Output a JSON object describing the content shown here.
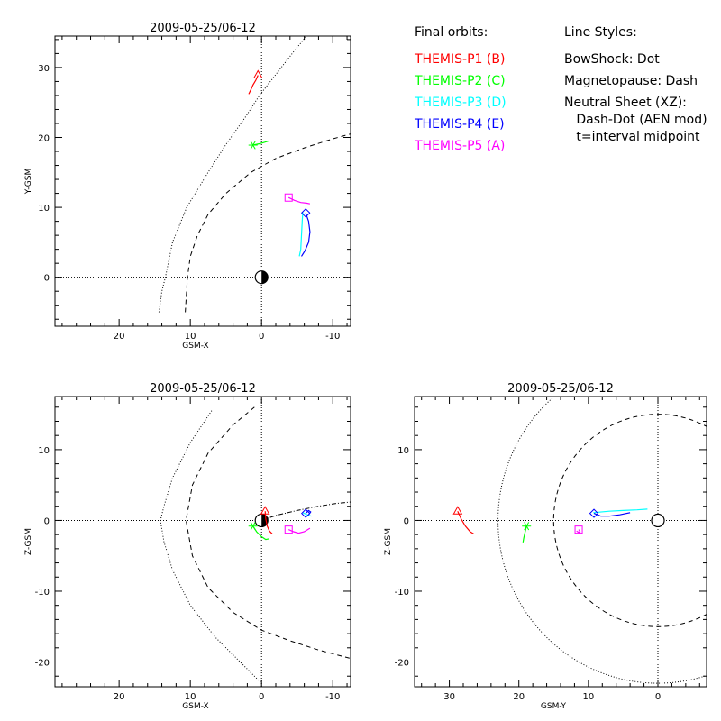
{
  "legend": {
    "orbits_heading": "Final orbits:",
    "orbits": [
      {
        "label": "THEMIS-P1 (B)",
        "color": "#ff0000"
      },
      {
        "label": "THEMIS-P2 (C)",
        "color": "#00ff00"
      },
      {
        "label": "THEMIS-P3 (D)",
        "color": "#00ffff"
      },
      {
        "label": "THEMIS-P4 (E)",
        "color": "#0000ff"
      },
      {
        "label": "THEMIS-P5 (A)",
        "color": "#ff00ff"
      }
    ],
    "styles_heading": "Line Styles:",
    "styles": [
      "BowShock: Dot",
      "Magnetopause: Dash",
      "Neutral Sheet (XZ):",
      "  Dash-Dot (AEN mod)",
      "  t=interval midpoint"
    ]
  },
  "chart_data": [
    {
      "type": "line",
      "title": "2009-05-25/06-12",
      "xlabel": "GSM-X",
      "ylabel": "Y-GSM",
      "xlim": [
        29,
        -12.5
      ],
      "ylim": [
        34.5,
        -7
      ],
      "xticks": [
        20,
        10,
        0,
        -10
      ],
      "yticks": [
        0,
        10,
        20,
        30
      ],
      "bowshock": [
        [
          14.4,
          -5
        ],
        [
          14,
          -2
        ],
        [
          13.5,
          0
        ],
        [
          12.5,
          5
        ],
        [
          10.5,
          10
        ],
        [
          7.5,
          15
        ],
        [
          5,
          19
        ],
        [
          2.2,
          23
        ],
        [
          0.3,
          26
        ],
        [
          -2,
          29
        ],
        [
          -4.3,
          32
        ],
        [
          -6.3,
          34.5
        ]
      ],
      "magnetopause": [
        [
          10.7,
          -5
        ],
        [
          10.4,
          0
        ],
        [
          10,
          3
        ],
        [
          9,
          6
        ],
        [
          7.5,
          9
        ],
        [
          5,
          12
        ],
        [
          1.5,
          15
        ],
        [
          -2,
          17
        ],
        [
          -6,
          18.5
        ],
        [
          -10,
          19.8
        ],
        [
          -12.5,
          20.5
        ]
      ],
      "series": [
        {
          "name": "THEMIS-P1 (B)",
          "color": "#ff0000",
          "marker": "triangle",
          "marker_xy": [
            0.5,
            28.9
          ],
          "path": [
            [
              0.5,
              28.9
            ],
            [
              0.8,
              28.2
            ],
            [
              1.2,
              27.5
            ],
            [
              1.5,
              26.8
            ],
            [
              1.8,
              26.2
            ]
          ]
        },
        {
          "name": "THEMIS-P2 (C)",
          "color": "#00ff00",
          "marker": "asterisk",
          "marker_xy": [
            1.2,
            18.9
          ],
          "path": [
            [
              1.2,
              18.9
            ],
            [
              0.3,
              19.1
            ],
            [
              -0.4,
              19.3
            ],
            [
              -1,
              19.5
            ]
          ]
        },
        {
          "name": "THEMIS-P3 (D)",
          "color": "#00ffff",
          "marker": "none",
          "marker_xy": [
            -5.8,
            9.3
          ],
          "path": [
            [
              -5.8,
              9.3
            ],
            [
              -5.7,
              8
            ],
            [
              -5.6,
              6
            ],
            [
              -5.5,
              4
            ],
            [
              -5.3,
              3
            ]
          ]
        },
        {
          "name": "THEMIS-P4 (E)",
          "color": "#0000ff",
          "marker": "diamond",
          "marker_xy": [
            -6.2,
            9.2
          ],
          "path": [
            [
              -6.2,
              9.2
            ],
            [
              -6.6,
              8
            ],
            [
              -6.8,
              6.5
            ],
            [
              -6.6,
              5
            ],
            [
              -6.1,
              3.8
            ],
            [
              -5.6,
              3
            ]
          ]
        },
        {
          "name": "THEMIS-P5 (A)",
          "color": "#ff00ff",
          "marker": "square",
          "marker_xy": [
            -3.8,
            11.4
          ],
          "path": [
            [
              -3.8,
              11.4
            ],
            [
              -4.6,
              11
            ],
            [
              -5.5,
              10.7
            ],
            [
              -6.3,
              10.6
            ],
            [
              -6.8,
              10.5
            ]
          ]
        }
      ]
    },
    {
      "type": "line",
      "title": "2009-05-25/06-12",
      "xlabel": "GSM-X",
      "ylabel": "Z-GSM",
      "xlim": [
        29,
        -12.5
      ],
      "ylim": [
        17.5,
        -23.5
      ],
      "xticks": [
        20,
        10,
        0,
        -10
      ],
      "yticks": [
        10,
        0,
        -10,
        -20
      ],
      "bowshock": [
        [
          7,
          15.5
        ],
        [
          10,
          11
        ],
        [
          12.5,
          6
        ],
        [
          13.7,
          2
        ],
        [
          14.2,
          0
        ],
        [
          13.7,
          -3
        ],
        [
          12.5,
          -7
        ],
        [
          10,
          -12
        ],
        [
          6.5,
          -16.5
        ],
        [
          3,
          -20
        ],
        [
          0,
          -23
        ]
      ],
      "magnetopause": [
        [
          1,
          16
        ],
        [
          4,
          13.5
        ],
        [
          7.5,
          9.5
        ],
        [
          9.7,
          5
        ],
        [
          10.6,
          0
        ],
        [
          9.7,
          -5
        ],
        [
          7.5,
          -9.5
        ],
        [
          4,
          -13
        ],
        [
          0,
          -15.5
        ],
        [
          -4,
          -17
        ],
        [
          -8,
          -18.3
        ],
        [
          -12.5,
          -19.5
        ]
      ],
      "neutral_sheet": [
        [
          0,
          0
        ],
        [
          -2,
          0.7
        ],
        [
          -5,
          1.4
        ],
        [
          -8,
          2
        ],
        [
          -10.5,
          2.4
        ],
        [
          -12.5,
          2.6
        ]
      ],
      "series": [
        {
          "name": "THEMIS-P1 (B)",
          "color": "#ff0000",
          "marker": "triangle",
          "marker_xy": [
            -0.5,
            1.3
          ],
          "path": [
            [
              -0.5,
              1.3
            ],
            [
              -0.6,
              0.2
            ],
            [
              -0.8,
              -0.8
            ],
            [
              -1.1,
              -1.5
            ],
            [
              -1.5,
              -1.9
            ]
          ]
        },
        {
          "name": "THEMIS-P2 (C)",
          "color": "#00ff00",
          "marker": "asterisk",
          "marker_xy": [
            1.2,
            -0.8
          ],
          "path": [
            [
              1.2,
              -0.8
            ],
            [
              0.7,
              -1.6
            ],
            [
              0,
              -2.3
            ],
            [
              -0.6,
              -2.7
            ],
            [
              -1,
              -2.6
            ]
          ]
        },
        {
          "name": "THEMIS-P3 (D)",
          "color": "#00ffff",
          "marker": "none",
          "marker_xy": [
            -5.8,
            1.1
          ],
          "path": [
            [
              -5.8,
              1.1
            ],
            [
              -6.4,
              0.8
            ],
            [
              -7,
              0.6
            ]
          ]
        },
        {
          "name": "THEMIS-P4 (E)",
          "color": "#0000ff",
          "marker": "diamond",
          "marker_xy": [
            -6.2,
            1.0
          ],
          "path": [
            [
              -6.2,
              1.0
            ],
            [
              -6.6,
              1.4
            ],
            [
              -6.9,
              1.2
            ],
            [
              -6.6,
              0.8
            ]
          ]
        },
        {
          "name": "THEMIS-P5 (A)",
          "color": "#ff00ff",
          "marker": "square",
          "marker_xy": [
            -3.8,
            -1.3
          ],
          "path": [
            [
              -3.8,
              -1.3
            ],
            [
              -4.5,
              -1.6
            ],
            [
              -5.2,
              -1.8
            ],
            [
              -6,
              -1.6
            ],
            [
              -6.8,
              -1.1
            ]
          ]
        }
      ]
    },
    {
      "type": "line",
      "title": "2009-05-25/06-12",
      "xlabel": "GSM-Y",
      "ylabel": "Z-GSM",
      "xlim": [
        35,
        -7
      ],
      "ylim": [
        17.5,
        -23.5
      ],
      "xticks": [
        30,
        20,
        10,
        0
      ],
      "yticks": [
        10,
        0,
        -10,
        -20
      ],
      "bowshock_circle": {
        "center": [
          0,
          0
        ],
        "radius": 23
      },
      "magnetopause_circle": {
        "center": [
          0,
          0
        ],
        "radius": 15
      },
      "series": [
        {
          "name": "THEMIS-P1 (B)",
          "color": "#ff0000",
          "marker": "triangle",
          "marker_xy": [
            28.8,
            1.3
          ],
          "path": [
            [
              28.8,
              1.3
            ],
            [
              28.3,
              0.2
            ],
            [
              27.7,
              -0.8
            ],
            [
              27,
              -1.6
            ],
            [
              26.5,
              -1.9
            ]
          ]
        },
        {
          "name": "THEMIS-P2 (C)",
          "color": "#00ff00",
          "marker": "asterisk",
          "marker_xy": [
            18.9,
            -0.8
          ],
          "path": [
            [
              18.9,
              -0.8
            ],
            [
              19.1,
              -1.6
            ],
            [
              19.3,
              -2.5
            ],
            [
              19.4,
              -3.1
            ]
          ]
        },
        {
          "name": "THEMIS-P3 (D)",
          "color": "#00ffff",
          "marker": "none",
          "marker_xy": [
            9.3,
            1.1
          ],
          "path": [
            [
              9.3,
              1.1
            ],
            [
              7,
              1.3
            ],
            [
              5,
              1.4
            ],
            [
              3,
              1.5
            ],
            [
              1.5,
              1.6
            ]
          ]
        },
        {
          "name": "THEMIS-P4 (E)",
          "color": "#0000ff",
          "marker": "diamond",
          "marker_xy": [
            9.2,
            1.0
          ],
          "path": [
            [
              9.2,
              1.0
            ],
            [
              8.2,
              0.6
            ],
            [
              7,
              0.6
            ],
            [
              5.5,
              0.8
            ],
            [
              4,
              1.1
            ]
          ]
        },
        {
          "name": "THEMIS-P5 (A)",
          "color": "#ff00ff",
          "marker": "square",
          "marker_xy": [
            11.4,
            -1.3
          ],
          "path": [
            [
              11.4,
              -1.3
            ],
            [
              11.2,
              -1.6
            ],
            [
              11.4,
              -1.7
            ],
            [
              11.7,
              -1.5
            ]
          ]
        }
      ]
    }
  ]
}
